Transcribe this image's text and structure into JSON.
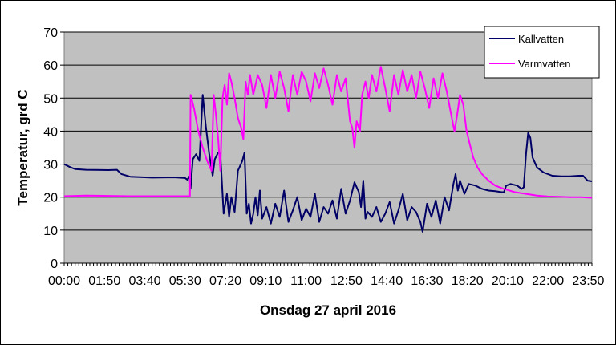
{
  "chart_data": {
    "type": "line",
    "xlabel": "Onsdag 27 april 2016",
    "ylabel": "Temperatur, grd C",
    "ylim": [
      0,
      70
    ],
    "yticks": [
      0,
      10,
      20,
      30,
      40,
      50,
      60,
      70
    ],
    "xlim_hours": [
      0,
      24
    ],
    "xtick_labels": [
      "00:00",
      "01:50",
      "03:40",
      "05:30",
      "07:20",
      "09:10",
      "11:00",
      "12:50",
      "14:40",
      "16:30",
      "18:20",
      "20:10",
      "22:00",
      "23:50"
    ],
    "plot_background": "#c0c0c0",
    "grid": "horizontal",
    "legend_position": "top-right",
    "series": [
      {
        "name": "Kallvatten",
        "color": "#000066",
        "points": [
          [
            0.0,
            30.0
          ],
          [
            0.3,
            29.0
          ],
          [
            0.5,
            28.5
          ],
          [
            1.0,
            28.3
          ],
          [
            2.0,
            28.2
          ],
          [
            2.4,
            28.3
          ],
          [
            2.6,
            27.0
          ],
          [
            3.0,
            26.2
          ],
          [
            4.0,
            25.9
          ],
          [
            5.0,
            26.0
          ],
          [
            5.5,
            25.8
          ],
          [
            5.6,
            25.3
          ],
          [
            5.7,
            26.3
          ],
          [
            5.75,
            22.5
          ],
          [
            5.85,
            31.5
          ],
          [
            6.0,
            33.0
          ],
          [
            6.15,
            31.0
          ],
          [
            6.3,
            51.0
          ],
          [
            6.45,
            41.0
          ],
          [
            6.6,
            33.0
          ],
          [
            6.75,
            26.5
          ],
          [
            6.85,
            31.5
          ],
          [
            7.0,
            33.5
          ],
          [
            7.1,
            33.0
          ],
          [
            7.25,
            15.0
          ],
          [
            7.4,
            21.0
          ],
          [
            7.5,
            14.0
          ],
          [
            7.6,
            20.0
          ],
          [
            7.75,
            15.5
          ],
          [
            7.9,
            28.0
          ],
          [
            8.1,
            31.0
          ],
          [
            8.2,
            33.5
          ],
          [
            8.3,
            15.0
          ],
          [
            8.4,
            18.0
          ],
          [
            8.5,
            12.0
          ],
          [
            8.6,
            15.0
          ],
          [
            8.7,
            20.0
          ],
          [
            8.8,
            14.5
          ],
          [
            8.9,
            22.0
          ],
          [
            9.0,
            13.5
          ],
          [
            9.2,
            17.0
          ],
          [
            9.4,
            12.0
          ],
          [
            9.6,
            18.0
          ],
          [
            9.8,
            14.0
          ],
          [
            10.0,
            22.0
          ],
          [
            10.2,
            12.5
          ],
          [
            10.4,
            16.0
          ],
          [
            10.6,
            20.0
          ],
          [
            10.8,
            13.0
          ],
          [
            11.0,
            16.5
          ],
          [
            11.2,
            14.0
          ],
          [
            11.4,
            21.0
          ],
          [
            11.6,
            12.5
          ],
          [
            11.8,
            17.0
          ],
          [
            12.0,
            15.0
          ],
          [
            12.2,
            19.0
          ],
          [
            12.4,
            13.5
          ],
          [
            12.6,
            22.5
          ],
          [
            12.8,
            15.0
          ],
          [
            13.0,
            19.0
          ],
          [
            13.2,
            24.5
          ],
          [
            13.4,
            21.5
          ],
          [
            13.5,
            17.0
          ],
          [
            13.6,
            25.0
          ],
          [
            13.7,
            13.5
          ],
          [
            13.8,
            15.5
          ],
          [
            14.0,
            14.0
          ],
          [
            14.2,
            17.0
          ],
          [
            14.4,
            12.5
          ],
          [
            14.6,
            15.0
          ],
          [
            14.8,
            18.5
          ],
          [
            15.0,
            12.0
          ],
          [
            15.2,
            16.0
          ],
          [
            15.4,
            21.0
          ],
          [
            15.6,
            13.0
          ],
          [
            15.8,
            17.0
          ],
          [
            16.0,
            15.5
          ],
          [
            16.2,
            12.5
          ],
          [
            16.3,
            9.5
          ],
          [
            16.5,
            18.0
          ],
          [
            16.7,
            14.0
          ],
          [
            16.9,
            19.0
          ],
          [
            17.1,
            12.0
          ],
          [
            17.3,
            20.0
          ],
          [
            17.5,
            16.0
          ],
          [
            17.7,
            24.0
          ],
          [
            17.8,
            27.0
          ],
          [
            17.9,
            22.0
          ],
          [
            18.0,
            25.0
          ],
          [
            18.2,
            21.0
          ],
          [
            18.4,
            24.0
          ],
          [
            18.7,
            23.5
          ],
          [
            19.0,
            22.5
          ],
          [
            19.3,
            22.0
          ],
          [
            19.6,
            21.8
          ],
          [
            19.9,
            21.5
          ],
          [
            20.0,
            21.5
          ],
          [
            20.1,
            23.5
          ],
          [
            20.3,
            24.0
          ],
          [
            20.6,
            23.5
          ],
          [
            20.8,
            22.5
          ],
          [
            20.9,
            23.0
          ],
          [
            21.0,
            33.0
          ],
          [
            21.1,
            39.5
          ],
          [
            21.2,
            38.0
          ],
          [
            21.3,
            32.0
          ],
          [
            21.5,
            29.0
          ],
          [
            21.8,
            27.5
          ],
          [
            22.2,
            26.5
          ],
          [
            22.6,
            26.3
          ],
          [
            23.0,
            26.3
          ],
          [
            23.4,
            26.5
          ],
          [
            23.6,
            26.5
          ],
          [
            23.8,
            25.0
          ],
          [
            24.0,
            24.8
          ]
        ]
      },
      {
        "name": "Varmvatten",
        "color": "#ff00ff",
        "points": [
          [
            0.0,
            20.3
          ],
          [
            0.5,
            20.4
          ],
          [
            1.0,
            20.5
          ],
          [
            2.0,
            20.4
          ],
          [
            3.0,
            20.3
          ],
          [
            4.0,
            20.3
          ],
          [
            5.0,
            20.3
          ],
          [
            5.72,
            20.3
          ],
          [
            5.75,
            51.0
          ],
          [
            5.9,
            47.0
          ],
          [
            6.1,
            40.0
          ],
          [
            6.3,
            35.0
          ],
          [
            6.5,
            31.0
          ],
          [
            6.7,
            28.0
          ],
          [
            6.8,
            51.0
          ],
          [
            6.9,
            45.0
          ],
          [
            7.0,
            38.0
          ],
          [
            7.1,
            28.0
          ],
          [
            7.2,
            50.0
          ],
          [
            7.3,
            54.0
          ],
          [
            7.4,
            48.0
          ],
          [
            7.5,
            57.5
          ],
          [
            7.6,
            55.0
          ],
          [
            7.75,
            50.0
          ],
          [
            7.9,
            44.0
          ],
          [
            8.05,
            41.0
          ],
          [
            8.15,
            37.5
          ],
          [
            8.25,
            55.0
          ],
          [
            8.35,
            51.0
          ],
          [
            8.45,
            57.0
          ],
          [
            8.6,
            51.0
          ],
          [
            8.8,
            57.0
          ],
          [
            9.0,
            54.0
          ],
          [
            9.2,
            47.0
          ],
          [
            9.4,
            57.0
          ],
          [
            9.6,
            50.0
          ],
          [
            9.8,
            58.0
          ],
          [
            10.0,
            53.0
          ],
          [
            10.2,
            46.0
          ],
          [
            10.4,
            57.0
          ],
          [
            10.6,
            51.0
          ],
          [
            10.8,
            58.0
          ],
          [
            11.0,
            55.0
          ],
          [
            11.2,
            49.0
          ],
          [
            11.4,
            57.5
          ],
          [
            11.6,
            53.0
          ],
          [
            11.8,
            59.0
          ],
          [
            12.0,
            54.0
          ],
          [
            12.2,
            48.0
          ],
          [
            12.4,
            57.0
          ],
          [
            12.6,
            52.0
          ],
          [
            12.8,
            56.0
          ],
          [
            13.0,
            43.0
          ],
          [
            13.1,
            41.0
          ],
          [
            13.2,
            35.0
          ],
          [
            13.3,
            43.0
          ],
          [
            13.45,
            40.0
          ],
          [
            13.55,
            51.0
          ],
          [
            13.7,
            55.0
          ],
          [
            13.85,
            50.0
          ],
          [
            14.0,
            57.0
          ],
          [
            14.2,
            52.0
          ],
          [
            14.4,
            59.5
          ],
          [
            14.6,
            53.0
          ],
          [
            14.8,
            46.0
          ],
          [
            15.0,
            57.0
          ],
          [
            15.2,
            51.0
          ],
          [
            15.4,
            58.5
          ],
          [
            15.6,
            52.0
          ],
          [
            15.8,
            57.0
          ],
          [
            16.0,
            50.0
          ],
          [
            16.2,
            58.0
          ],
          [
            16.4,
            53.0
          ],
          [
            16.6,
            47.0
          ],
          [
            16.8,
            56.0
          ],
          [
            17.0,
            50.0
          ],
          [
            17.2,
            57.5
          ],
          [
            17.4,
            52.0
          ],
          [
            17.6,
            45.0
          ],
          [
            17.75,
            40.0
          ],
          [
            17.85,
            44.0
          ],
          [
            18.0,
            51.0
          ],
          [
            18.15,
            48.0
          ],
          [
            18.3,
            40.0
          ],
          [
            18.45,
            36.0
          ],
          [
            18.6,
            32.0
          ],
          [
            18.8,
            29.0
          ],
          [
            19.0,
            27.0
          ],
          [
            19.3,
            25.0
          ],
          [
            19.6,
            23.5
          ],
          [
            20.0,
            22.5
          ],
          [
            20.5,
            21.5
          ],
          [
            21.0,
            21.0
          ],
          [
            21.5,
            20.5
          ],
          [
            22.0,
            20.2
          ],
          [
            22.5,
            20.1
          ],
          [
            23.0,
            20.0
          ],
          [
            23.5,
            20.0
          ],
          [
            24.0,
            19.8
          ]
        ]
      }
    ]
  }
}
